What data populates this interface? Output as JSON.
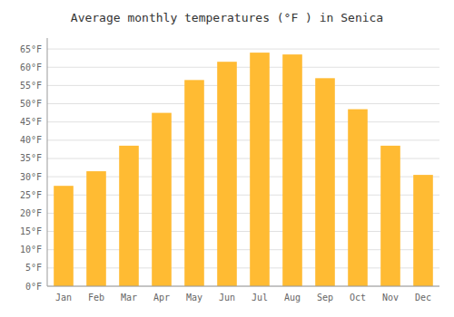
{
  "chart_data": {
    "type": "bar",
    "title": "Average monthly temperatures (°F ) in Senica",
    "categories": [
      "Jan",
      "Feb",
      "Mar",
      "Apr",
      "May",
      "Jun",
      "Jul",
      "Aug",
      "Sep",
      "Oct",
      "Nov",
      "Dec"
    ],
    "values": [
      27.5,
      31.5,
      38.5,
      47.5,
      56.5,
      61.5,
      64.0,
      63.5,
      57.0,
      48.5,
      38.5,
      30.5
    ],
    "color": "#FFBB33",
    "ylim": [
      0,
      68
    ],
    "yticks": [
      {
        "value": 0,
        "label": "0°F"
      },
      {
        "value": 5,
        "label": "5°F"
      },
      {
        "value": 10,
        "label": "10°F"
      },
      {
        "value": 15,
        "label": "15°F"
      },
      {
        "value": 20,
        "label": "20°F"
      },
      {
        "value": 25,
        "label": "25°F"
      },
      {
        "value": 30,
        "label": "30°F"
      },
      {
        "value": 35,
        "label": "35°F"
      },
      {
        "value": 40,
        "label": "40°F"
      },
      {
        "value": 45,
        "label": "45°F"
      },
      {
        "value": 50,
        "label": "50°F"
      },
      {
        "value": 55,
        "label": "55°F"
      },
      {
        "value": 60,
        "label": "60°F"
      },
      {
        "value": 65,
        "label": "65°F"
      }
    ],
    "grid": true
  }
}
